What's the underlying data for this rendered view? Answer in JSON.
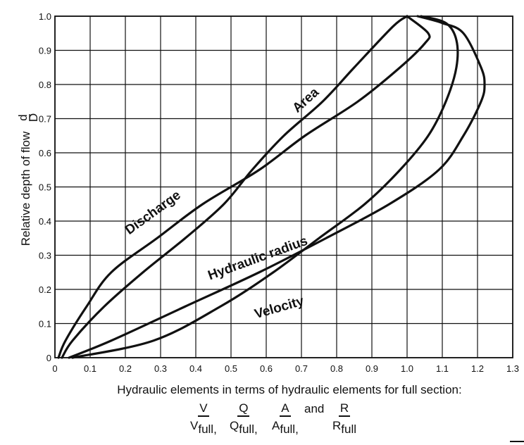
{
  "chart_data": {
    "type": "line",
    "ylabel": "Relative depth of flow",
    "ylabel_fraction": {
      "num": "d",
      "den": "D"
    },
    "xlabel": "Hydraulic elements in terms of hydraulic elements for full section:",
    "xlim": [
      0,
      1.3
    ],
    "ylim": [
      0,
      1.0
    ],
    "x_ticks": [
      "0",
      "0.1",
      "0.2",
      "0.3",
      "0.4",
      "0.5",
      "0.6",
      "0.7",
      "0.8",
      "0.9",
      "1.0",
      "1.1",
      "1.2",
      "1.3"
    ],
    "y_ticks": [
      "0",
      "0.1",
      "0.2",
      "0.3",
      "0.4",
      "0.5",
      "0.6",
      "0.7",
      "0.8",
      "0.9",
      "1.0"
    ],
    "grid": true,
    "series": [
      {
        "name": "Area",
        "points": [
          [
            0.02,
            0.0
          ],
          [
            0.05,
            0.05
          ],
          [
            0.14,
            0.15
          ],
          [
            0.25,
            0.25
          ],
          [
            0.37,
            0.35
          ],
          [
            0.48,
            0.45
          ],
          [
            0.56,
            0.55
          ],
          [
            0.65,
            0.65
          ],
          [
            0.76,
            0.75
          ],
          [
            0.85,
            0.85
          ],
          [
            0.96,
            0.97
          ],
          [
            1.0,
            1.0
          ]
        ]
      },
      {
        "name": "Discharge",
        "points": [
          [
            0.01,
            0.0
          ],
          [
            0.03,
            0.05
          ],
          [
            0.09,
            0.15
          ],
          [
            0.16,
            0.25
          ],
          [
            0.29,
            0.35
          ],
          [
            0.42,
            0.45
          ],
          [
            0.58,
            0.55
          ],
          [
            0.71,
            0.65
          ],
          [
            0.86,
            0.75
          ],
          [
            0.98,
            0.85
          ],
          [
            1.05,
            0.92
          ],
          [
            1.06,
            0.95
          ],
          [
            1.0,
            1.0
          ]
        ]
      },
      {
        "name": "Hydraulic radius",
        "points": [
          [
            0.04,
            0.0
          ],
          [
            0.16,
            0.05
          ],
          [
            0.37,
            0.15
          ],
          [
            0.58,
            0.25
          ],
          [
            0.77,
            0.35
          ],
          [
            0.95,
            0.45
          ],
          [
            1.09,
            0.55
          ],
          [
            1.16,
            0.65
          ],
          [
            1.21,
            0.75
          ],
          [
            1.22,
            0.8
          ],
          [
            1.21,
            0.85
          ],
          [
            1.16,
            0.95
          ],
          [
            1.1,
            0.98
          ],
          [
            1.03,
            1.0
          ]
        ]
      },
      {
        "name": "Velocity",
        "points": [
          [
            0.05,
            0.0
          ],
          [
            0.28,
            0.05
          ],
          [
            0.47,
            0.15
          ],
          [
            0.62,
            0.25
          ],
          [
            0.75,
            0.35
          ],
          [
            0.88,
            0.45
          ],
          [
            0.98,
            0.55
          ],
          [
            1.06,
            0.65
          ],
          [
            1.11,
            0.75
          ],
          [
            1.14,
            0.85
          ],
          [
            1.14,
            0.93
          ],
          [
            1.11,
            0.98
          ],
          [
            1.04,
            1.0
          ]
        ]
      }
    ],
    "series_labels": [
      {
        "name": "Area",
        "x": 0.72,
        "y": 0.745,
        "angle": -42
      },
      {
        "name": "Discharge",
        "x": 0.285,
        "y": 0.415,
        "angle": -36
      },
      {
        "name": "Hydraulic radius",
        "x": 0.58,
        "y": 0.28,
        "angle": -20
      },
      {
        "name": "Velocity",
        "x": 0.64,
        "y": 0.135,
        "angle": -16
      }
    ],
    "ratios": [
      {
        "num": "V",
        "den": "V",
        "den_sub": "full,"
      },
      {
        "num": "Q",
        "den": "Q",
        "den_sub": "full,"
      },
      {
        "num": "A",
        "den": "A",
        "den_sub": "full,"
      },
      {
        "num": "R",
        "den": "R",
        "den_sub": "full"
      }
    ],
    "ratio_joiner": "and"
  }
}
